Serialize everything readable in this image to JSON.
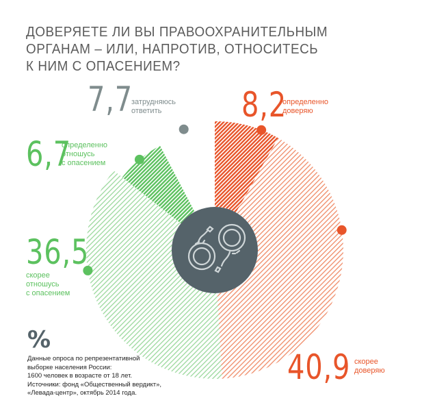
{
  "title_lines": [
    "ДОВЕРЯЕТЕ ЛИ ВЫ ПРАВООХРАНИТЕЛЬНЫМ",
    "ОРГАНАМ – ИЛИ, НАПРОТИВ, ОТНОСИТЕСЬ",
    "К НИМ С ОПАСЕНИЕМ?"
  ],
  "chart_data": {
    "type": "pie",
    "categories": [
      "определенно доверяю",
      "скорее доверяю",
      "скорее отношусь с опасением",
      "определенно отношусь с опасением",
      "затрудняюсь ответить"
    ],
    "values": [
      8.2,
      40.9,
      36.5,
      6.7,
      7.7
    ],
    "value_labels": [
      "8,2",
      "40,9",
      "36,5",
      "6,7",
      "7,7"
    ],
    "label_texts": [
      "определенно\nдоверяю",
      "скорее\nдоверяю",
      "скорее\nотношусь\nс опасением",
      "определенно\nотношусь\nс опасением",
      "затрудняюсь\nответить"
    ],
    "colors": [
      "#e8552a",
      "#e8552a",
      "#5cc15f",
      "#5cc15f",
      "#7f8c8d"
    ],
    "fill_styles": [
      "dense",
      "light",
      "light",
      "dense",
      "empty"
    ]
  },
  "center_icon": "handcuffs-icon",
  "percent_sign": "%",
  "footnote": "Данные опроса по репрезентативной\nвыборке населения России:\n1600 человек в возрасте от 18 лет.\nИсточники: фонд «Общественный вердикт»,\n«Левада-центр», октябрь 2014 года."
}
